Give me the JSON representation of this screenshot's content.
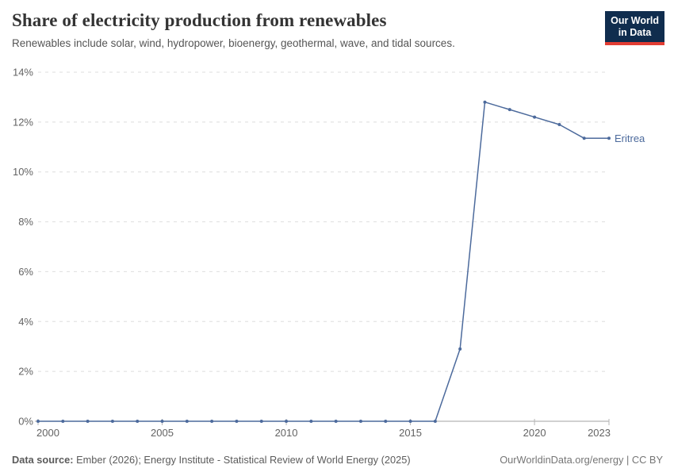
{
  "header": {
    "title": "Share of electricity production from renewables",
    "subtitle": "Renewables include solar, wind, hydropower, bioenergy, geothermal, wave, and tidal sources."
  },
  "logo": {
    "line1": "Our World",
    "line2": "in Data",
    "bg_color": "#102d4e",
    "accent_color": "#e23d33"
  },
  "chart_data": {
    "type": "line",
    "title": "Share of electricity production from renewables",
    "xlabel": "",
    "ylabel": "",
    "xlim": [
      2000,
      2023
    ],
    "ylim": [
      0,
      14
    ],
    "x_ticks": [
      2000,
      2005,
      2010,
      2015,
      2020,
      2023
    ],
    "y_ticks": [
      0,
      2,
      4,
      6,
      8,
      10,
      12,
      14
    ],
    "y_tick_suffix": "%",
    "grid": "horizontal-dashed",
    "legend_position": "end-of-line-label",
    "x": [
      2000,
      2001,
      2002,
      2003,
      2004,
      2005,
      2006,
      2007,
      2008,
      2009,
      2010,
      2011,
      2012,
      2013,
      2014,
      2015,
      2016,
      2017,
      2018,
      2019,
      2020,
      2021,
      2022,
      2023
    ],
    "series": [
      {
        "name": "Eritrea",
        "color": "#4C6A9C",
        "values": [
          0,
          0,
          0,
          0,
          0,
          0,
          0,
          0,
          0,
          0,
          0,
          0,
          0,
          0,
          0,
          0,
          0,
          2.9,
          12.8,
          12.5,
          12.2,
          11.9,
          11.35,
          11.35
        ]
      }
    ]
  },
  "colors": {
    "gridline": "#dedede",
    "axis_line": "#a0a0a0",
    "tick_label": "#636363",
    "line": "#4C6A9C"
  },
  "footer": {
    "source_label": "Data source:",
    "source_text": " Ember (2026); Energy Institute - Statistical Review of World Energy (2025)",
    "credit": "OurWorldinData.org/energy | CC BY"
  }
}
